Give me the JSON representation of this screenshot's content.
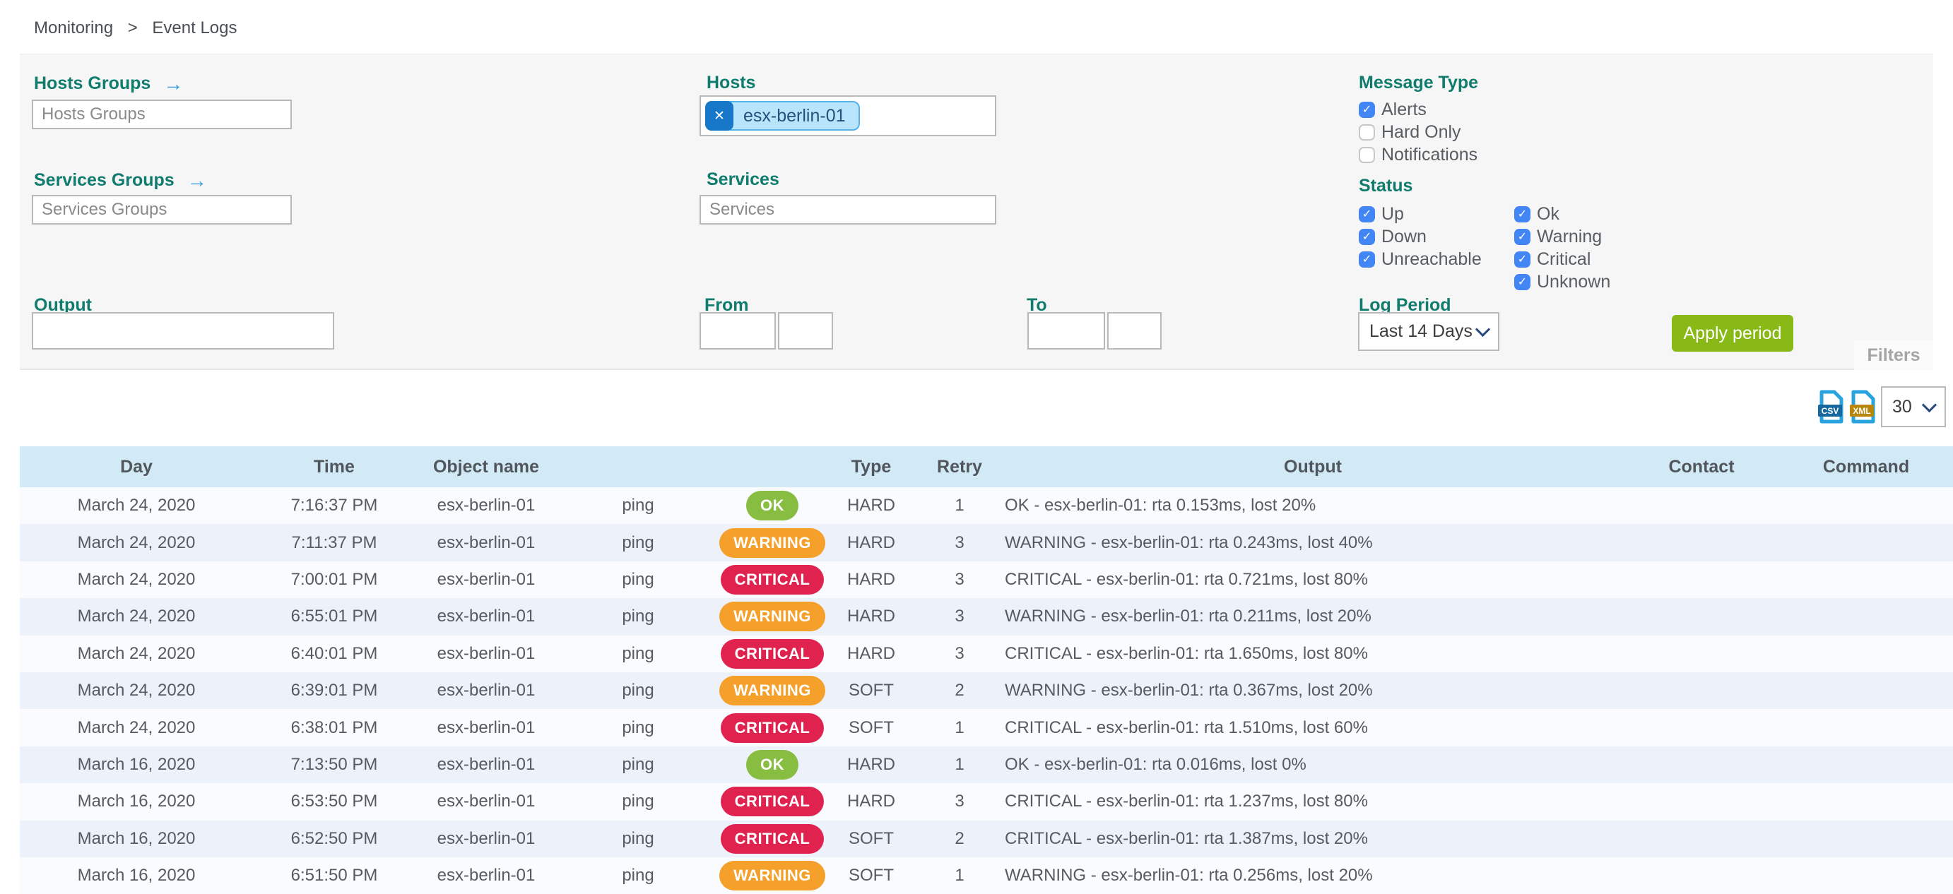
{
  "breadcrumb": {
    "items": [
      "Monitoring",
      "Event Logs"
    ],
    "separator": ">"
  },
  "filter_panel": {
    "hosts_groups": {
      "label": "Hosts Groups",
      "placeholder": "Hosts Groups",
      "arrow_icon": "→"
    },
    "services_groups": {
      "label": "Services Groups",
      "placeholder": "Services Groups",
      "arrow_icon": "→"
    },
    "hosts": {
      "label": "Hosts",
      "tags": [
        "esx-berlin-01"
      ],
      "remove_icon": "✕"
    },
    "services": {
      "label": "Services",
      "placeholder": "Services"
    },
    "output": {
      "label": "Output",
      "value": ""
    },
    "from": {
      "label": "From",
      "date": "",
      "time": ""
    },
    "to": {
      "label": "To",
      "date": "",
      "time": ""
    },
    "message_type": {
      "label": "Message Type",
      "options": [
        {
          "label": "Alerts",
          "checked": true
        },
        {
          "label": "Hard Only",
          "checked": false
        },
        {
          "label": "Notifications",
          "checked": false
        }
      ]
    },
    "status": {
      "label": "Status",
      "columns": [
        [
          {
            "label": "Up",
            "checked": true
          },
          {
            "label": "Down",
            "checked": true
          },
          {
            "label": "Unreachable",
            "checked": true
          }
        ],
        [
          {
            "label": "Ok",
            "checked": true
          },
          {
            "label": "Warning",
            "checked": true
          },
          {
            "label": "Critical",
            "checked": true
          },
          {
            "label": "Unknown",
            "checked": true
          }
        ]
      ]
    },
    "log_period": {
      "label": "Log Period",
      "selected": "Last 14 Days"
    },
    "apply_button_label": "Apply period",
    "filters_tab_label": "Filters"
  },
  "toolbar": {
    "export_csv_label": "CSV",
    "export_xml_label": "XML",
    "page_size": "30"
  },
  "table": {
    "columns": [
      {
        "key": "day",
        "label": "Day"
      },
      {
        "key": "time",
        "label": "Time"
      },
      {
        "key": "object",
        "label": "Object name"
      },
      {
        "key": "service",
        "label": ""
      },
      {
        "key": "status",
        "label": ""
      },
      {
        "key": "type",
        "label": "Type"
      },
      {
        "key": "retry",
        "label": "Retry"
      },
      {
        "key": "output",
        "label": "Output"
      },
      {
        "key": "contact",
        "label": "Contact"
      },
      {
        "key": "command",
        "label": "Command"
      }
    ],
    "rows": [
      {
        "day": "March 24, 2020",
        "time": "7:16:37 PM",
        "object": "esx-berlin-01",
        "service": "ping",
        "status": "OK",
        "type": "HARD",
        "retry": "1",
        "output": "OK - esx-berlin-01: rta 0.153ms, lost 20%",
        "contact": "",
        "command": ""
      },
      {
        "day": "March 24, 2020",
        "time": "7:11:37 PM",
        "object": "esx-berlin-01",
        "service": "ping",
        "status": "WARNING",
        "type": "HARD",
        "retry": "3",
        "output": "WARNING - esx-berlin-01: rta 0.243ms, lost 40%",
        "contact": "",
        "command": ""
      },
      {
        "day": "March 24, 2020",
        "time": "7:00:01 PM",
        "object": "esx-berlin-01",
        "service": "ping",
        "status": "CRITICAL",
        "type": "HARD",
        "retry": "3",
        "output": "CRITICAL - esx-berlin-01: rta 0.721ms, lost 80%",
        "contact": "",
        "command": ""
      },
      {
        "day": "March 24, 2020",
        "time": "6:55:01 PM",
        "object": "esx-berlin-01",
        "service": "ping",
        "status": "WARNING",
        "type": "HARD",
        "retry": "3",
        "output": "WARNING - esx-berlin-01: rta 0.211ms, lost 20%",
        "contact": "",
        "command": ""
      },
      {
        "day": "March 24, 2020",
        "time": "6:40:01 PM",
        "object": "esx-berlin-01",
        "service": "ping",
        "status": "CRITICAL",
        "type": "HARD",
        "retry": "3",
        "output": "CRITICAL - esx-berlin-01: rta 1.650ms, lost 80%",
        "contact": "",
        "command": ""
      },
      {
        "day": "March 24, 2020",
        "time": "6:39:01 PM",
        "object": "esx-berlin-01",
        "service": "ping",
        "status": "WARNING",
        "type": "SOFT",
        "retry": "2",
        "output": "WARNING - esx-berlin-01: rta 0.367ms, lost 20%",
        "contact": "",
        "command": ""
      },
      {
        "day": "March 24, 2020",
        "time": "6:38:01 PM",
        "object": "esx-berlin-01",
        "service": "ping",
        "status": "CRITICAL",
        "type": "SOFT",
        "retry": "1",
        "output": "CRITICAL - esx-berlin-01: rta 1.510ms, lost 60%",
        "contact": "",
        "command": ""
      },
      {
        "day": "March 16, 2020",
        "time": "7:13:50 PM",
        "object": "esx-berlin-01",
        "service": "ping",
        "status": "OK",
        "type": "HARD",
        "retry": "1",
        "output": "OK - esx-berlin-01: rta 0.016ms, lost 0%",
        "contact": "",
        "command": ""
      },
      {
        "day": "March 16, 2020",
        "time": "6:53:50 PM",
        "object": "esx-berlin-01",
        "service": "ping",
        "status": "CRITICAL",
        "type": "HARD",
        "retry": "3",
        "output": "CRITICAL - esx-berlin-01: rta 1.237ms, lost 80%",
        "contact": "",
        "command": ""
      },
      {
        "day": "March 16, 2020",
        "time": "6:52:50 PM",
        "object": "esx-berlin-01",
        "service": "ping",
        "status": "CRITICAL",
        "type": "SOFT",
        "retry": "2",
        "output": "CRITICAL - esx-berlin-01: rta 1.387ms, lost 20%",
        "contact": "",
        "command": ""
      },
      {
        "day": "March 16, 2020",
        "time": "6:51:50 PM",
        "object": "esx-berlin-01",
        "service": "ping",
        "status": "WARNING",
        "type": "SOFT",
        "retry": "1",
        "output": "WARNING - esx-berlin-01: rta 0.256ms, lost 20%",
        "contact": "",
        "command": ""
      }
    ]
  },
  "colors": {
    "ok": "#87bd40",
    "warning": "#f4a02a",
    "critical": "#e0234e",
    "accent_teal": "#107c6e",
    "checkbox_blue": "#4285f4",
    "apply_green": "#88b917",
    "tag_bg": "#b9e5fc",
    "header_bg": "#d2eaf6"
  }
}
